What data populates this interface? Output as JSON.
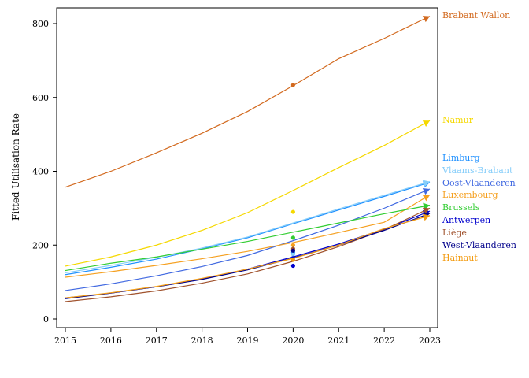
{
  "chart_data": {
    "type": "line",
    "title": "",
    "xlabel": "",
    "ylabel": "Fitted Utilisation Rate",
    "xlim": [
      2015,
      2023
    ],
    "ylim": [
      0,
      840
    ],
    "x_ticks": [
      2015,
      2016,
      2017,
      2018,
      2019,
      2020,
      2021,
      2022,
      2023
    ],
    "y_ticks": [
      0,
      200,
      400,
      600,
      800
    ],
    "grid": false,
    "legend": "line-end labels on the right",
    "x": [
      2015,
      2016,
      2017,
      2018,
      2019,
      2020,
      2021,
      2022,
      2023
    ],
    "series": [
      {
        "name": "Brabant Wallon",
        "color": "#d2691e",
        "values": [
          357,
          400,
          450,
          503,
          562,
          632,
          705,
          760,
          820
        ],
        "observed": {
          "x": 2020,
          "y": 634
        }
      },
      {
        "name": "Namur",
        "color": "#f5d800",
        "values": [
          143,
          168,
          200,
          240,
          288,
          348,
          410,
          470,
          537
        ],
        "observed": {
          "x": 2020,
          "y": 290
        }
      },
      {
        "name": "Limburg",
        "color": "#1e90ff",
        "values": [
          120,
          140,
          162,
          190,
          220,
          258,
          295,
          332,
          370
        ],
        "observed": {
          "x": 2020,
          "y": 180
        }
      },
      {
        "name": "Vlaams-Brabant",
        "color": "#87cefa",
        "values": [
          125,
          145,
          167,
          192,
          222,
          260,
          298,
          335,
          372
        ],
        "observed": {
          "x": 2020,
          "y": 175
        }
      },
      {
        "name": "Oost-Vlaanderen",
        "color": "#4169e1",
        "values": [
          77,
          95,
          117,
          142,
          172,
          212,
          254,
          300,
          352
        ],
        "observed": {
          "x": 2020,
          "y": 166
        }
      },
      {
        "name": "Luxembourg",
        "color": "#f5a020",
        "values": [
          113,
          128,
          145,
          163,
          183,
          207,
          234,
          262,
          336
        ],
        "observed": {
          "x": 2020,
          "y": 200
        }
      },
      {
        "name": "Brussels",
        "color": "#32cd32",
        "values": [
          131,
          151,
          168,
          189,
          210,
          235,
          260,
          285,
          308
        ],
        "observed": {
          "x": 2020,
          "y": 220
        }
      },
      {
        "name": "Antwerpen",
        "color": "#0000cd",
        "values": [
          57,
          70,
          87,
          108,
          135,
          168,
          203,
          243,
          292
        ],
        "observed": {
          "x": 2020,
          "y": 144
        }
      },
      {
        "name": "Liège",
        "color": "#a0522d",
        "values": [
          47,
          60,
          76,
          97,
          122,
          156,
          196,
          242,
          300
        ],
        "observed": {
          "x": 2020,
          "y": 190
        }
      },
      {
        "name": "West-Vlaanderen",
        "color": "#00008b",
        "values": [
          55,
          70,
          87,
          107,
          133,
          165,
          200,
          240,
          286
        ],
        "observed": {
          "x": 2020,
          "y": 185
        }
      },
      {
        "name": "Hainaut",
        "color": "#f39c12",
        "values": [
          57,
          71,
          88,
          110,
          135,
          164,
          200,
          245,
          280
        ],
        "observed": {
          "x": 2020,
          "y": 160
        }
      }
    ]
  }
}
